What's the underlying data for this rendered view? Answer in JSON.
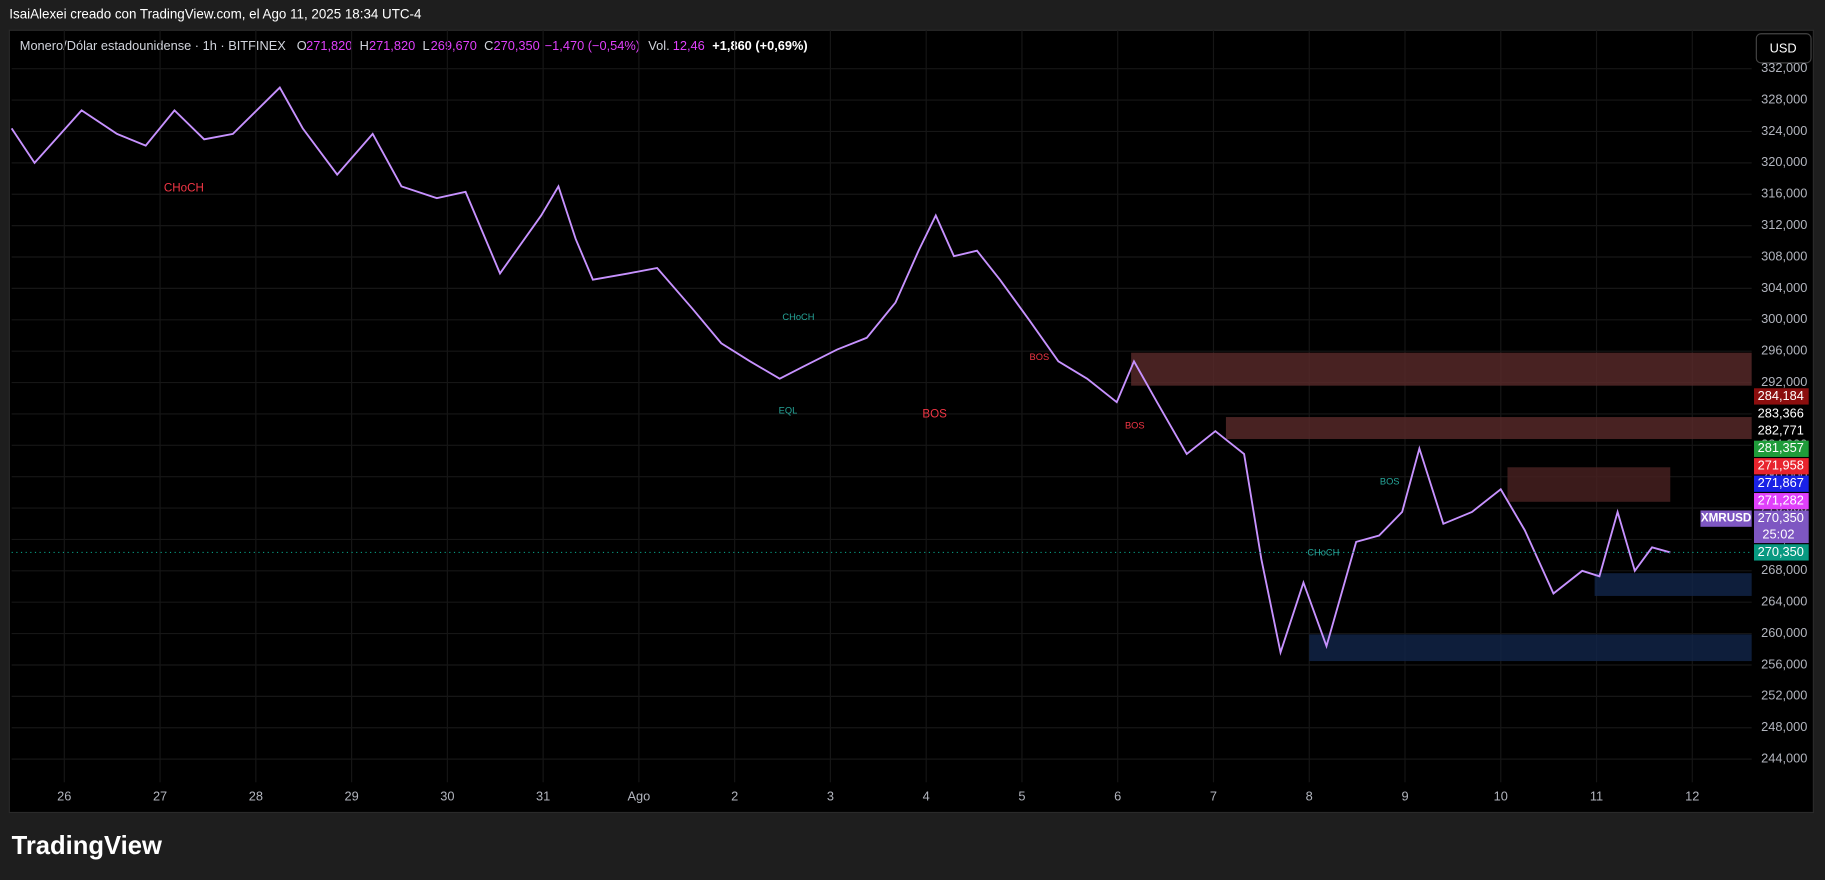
{
  "header": "IsaiAlexei creado con TradingView.com, el Ago 11, 2025 18:34 UTC-4",
  "footer": "TradingView",
  "chart_data": {
    "type": "line",
    "legend": {
      "symbol": "Monero/Dólar estadounidense · 1h · BITFINEX",
      "o": "O",
      "o_val": "271,820",
      "h": "H",
      "h_val": "271,820",
      "l": "L",
      "l_val": "269,670",
      "c": "C",
      "c_val": "270,350",
      "change": "−1,470 (−0,54%)",
      "vol": "Vol.",
      "vol_val": "12,46",
      "post": "+1,860 (+0,69%)"
    },
    "currency": "USD",
    "countdown": "25:02",
    "grid": true,
    "x": [
      25.45,
      25.69,
      26.18,
      26.55,
      26.85,
      27.15,
      27.46,
      27.76,
      28.25,
      28.49,
      28.85,
      29.22,
      29.52,
      29.89,
      30.19,
      30.55,
      30.98,
      31.16,
      31.34,
      31.52,
      31.89,
      32.19,
      32.56,
      32.86,
      33.16,
      33.47,
      33.71,
      34.07,
      34.38,
      34.68,
      34.92,
      35.1,
      35.29,
      35.53,
      35.77,
      36.08,
      36.38,
      36.68,
      36.99,
      37.17,
      37.41,
      37.72,
      38.02,
      38.32,
      38.5,
      38.7,
      38.94,
      39.18,
      39.49,
      39.73,
      39.97,
      40.15,
      40.4,
      40.7,
      41.0,
      41.25,
      41.55,
      41.85,
      42.03,
      42.22,
      42.4,
      42.58,
      42.77
    ],
    "series": [
      {
        "name": "XMRUSD",
        "color": "#c792ff",
        "values": [
          324.4,
          320,
          326.7,
          323.7,
          322.2,
          326.7,
          323,
          323.7,
          329.6,
          324.4,
          318.5,
          323.7,
          317,
          315.5,
          316.3,
          305.9,
          313.3,
          317,
          310.3,
          305.1,
          305.9,
          306.6,
          301.4,
          297,
          294.7,
          292.5,
          294,
          296.2,
          297.7,
          302.2,
          308.8,
          313.3,
          308.1,
          308.8,
          305.1,
          299.9,
          294.7,
          292.5,
          289.5,
          294.7,
          289.5,
          282.9,
          285.8,
          282.9,
          269.5,
          257.6,
          266.5,
          258.4,
          271.7,
          272.5,
          275.5,
          283.6,
          274,
          275.5,
          278.4,
          273.2,
          265.1,
          268,
          267.3,
          275.5,
          268,
          271,
          270.35
        ]
      }
    ],
    "zones": [
      {
        "x": [
          37.14,
          43.62
        ],
        "y": [
          291.6,
          295.8
        ],
        "color": "#5a2a2a"
      },
      {
        "x": [
          38.13,
          43.62
        ],
        "y": [
          284.8,
          287.6
        ],
        "color": "#5a2a2a"
      },
      {
        "x": [
          41.07,
          42.77
        ],
        "y": [
          276.8,
          281.2
        ],
        "color": "#4a2222"
      },
      {
        "x": [
          41.98,
          43.62
        ],
        "y": [
          264.8,
          267.7
        ],
        "color": "#12254a"
      },
      {
        "x": [
          39.0,
          43.62
        ],
        "y": [
          256.5,
          259.9
        ],
        "color": "#12254a"
      }
    ],
    "annotations": [
      "CHoCH",
      "BOS",
      "EQL",
      "CHoCH",
      "BOS",
      "BOS",
      "CHoCH",
      "BOS"
    ],
    "price_tags": [
      {
        "value": 284.184,
        "label": "284,184",
        "color": "#8b0e0e"
      },
      {
        "value": 283.366,
        "label": "283,366",
        "color": "#000000"
      },
      {
        "value": 282.771,
        "label": "282,771",
        "color": "#000000"
      },
      {
        "value": 281.357,
        "label": "281,357",
        "color": "#1f9c3a"
      },
      {
        "value": 271.958,
        "label": "271,958",
        "color": "#e8242e"
      },
      {
        "value": 271.867,
        "label": "271,867",
        "color": "#1a22e6"
      },
      {
        "value": 271.282,
        "label": "271,282",
        "color": "#e040fb"
      },
      {
        "value": 270.35,
        "label": "270,350",
        "color": "#7e57c2"
      },
      {
        "value": 270.35,
        "label": "270,350",
        "color": "#089981"
      }
    ],
    "xlim": [
      25.45,
      43.62
    ],
    "xticks": [
      26,
      27,
      28,
      29,
      30,
      31,
      {
        "value": 32,
        "label": "Ago"
      },
      {
        "value": 33,
        "label": "2"
      },
      {
        "value": 34,
        "label": "3"
      },
      {
        "value": 35,
        "label": "4"
      },
      {
        "value": 36,
        "label": "5"
      },
      {
        "value": 37,
        "label": "6"
      },
      {
        "value": 38,
        "label": "7"
      },
      {
        "value": 39,
        "label": "8"
      },
      {
        "value": 40,
        "label": "9"
      },
      {
        "value": 41,
        "label": "10"
      },
      {
        "value": 42,
        "label": "11"
      },
      {
        "value": 43,
        "label": "12"
      }
    ],
    "ylim": [
      237.2,
      336.9
    ],
    "yticks": [
      {
        "value": 244,
        "label": "244,000"
      },
      {
        "value": 248,
        "label": "248,000"
      },
      {
        "value": 252,
        "label": "252,000"
      },
      {
        "value": 256,
        "label": "256,000"
      },
      {
        "value": 260,
        "label": "260,000"
      },
      {
        "value": 264,
        "label": "264,000"
      },
      {
        "value": 268,
        "label": "268,000"
      },
      {
        "value": 272,
        "label": "272,000"
      },
      {
        "value": 276,
        "label": "276,000"
      },
      {
        "value": 280,
        "label": "280,000"
      },
      {
        "value": 284,
        "label": "284,000"
      },
      {
        "value": 288,
        "label": "288,000"
      },
      {
        "value": 292,
        "label": "292,000"
      },
      {
        "value": 296,
        "label": "296,000"
      },
      {
        "value": 300,
        "label": "300,000"
      },
      {
        "value": 304,
        "label": "304,000"
      },
      {
        "value": 308,
        "label": "308,000"
      },
      {
        "value": 312,
        "label": "312,000"
      },
      {
        "value": 316,
        "label": "316,000"
      },
      {
        "value": 320,
        "label": "320,000"
      },
      {
        "value": 324,
        "label": "324,000"
      },
      {
        "value": 328,
        "label": "328,000"
      },
      {
        "value": 332,
        "label": "332,000"
      }
    ]
  }
}
